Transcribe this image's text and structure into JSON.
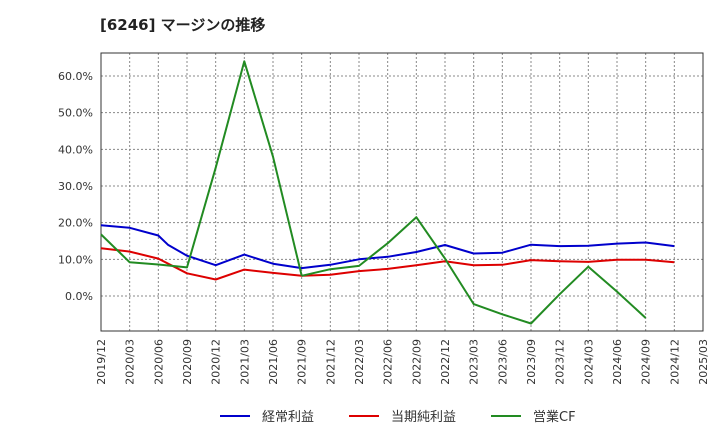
{
  "title": "[6246]  マージンの推移",
  "chart_data": {
    "type": "line",
    "title": "[6246]  マージンの推移",
    "xlabel": "",
    "ylabel": "",
    "ylim": [
      -10,
      67
    ],
    "x_ticks": [
      "2019/12",
      "2020/03",
      "2020/06",
      "2020/09",
      "2020/12",
      "2021/03",
      "2021/06",
      "2021/09",
      "2021/12",
      "2022/03",
      "2022/06",
      "2022/09",
      "2022/12",
      "2023/03",
      "2023/06",
      "2023/09",
      "2023/12",
      "2024/03",
      "2024/06",
      "2024/09",
      "2024/12",
      "2025/03"
    ],
    "y_ticks": [
      0,
      10,
      20,
      30,
      40,
      50,
      60
    ],
    "y_tick_labels": [
      "0.0%",
      "10.0%",
      "20.0%",
      "30.0%",
      "40.0%",
      "50.0%",
      "60.0%"
    ],
    "grid": true,
    "legend_position": "bottom",
    "series": [
      {
        "name": "経常利益",
        "color": "#0000cc",
        "points": [
          [
            "2019/12",
            19.3
          ],
          [
            "2020/03",
            18.6
          ],
          [
            "2020/06",
            16.5
          ],
          [
            "2020/07",
            14.0
          ],
          [
            "2020/09",
            11.0
          ],
          [
            "2020/12",
            8.4
          ],
          [
            "2021/03",
            11.3
          ],
          [
            "2021/06",
            8.8
          ],
          [
            "2021/09",
            7.6
          ],
          [
            "2021/12",
            8.5
          ],
          [
            "2022/03",
            10.0
          ],
          [
            "2022/06",
            10.7
          ],
          [
            "2022/09",
            12.0
          ],
          [
            "2022/12",
            13.9
          ],
          [
            "2023/03",
            11.6
          ],
          [
            "2023/06",
            11.8
          ],
          [
            "2023/09",
            14.0
          ],
          [
            "2023/12",
            13.6
          ],
          [
            "2024/03",
            13.7
          ],
          [
            "2024/06",
            14.3
          ],
          [
            "2024/09",
            14.6
          ],
          [
            "2024/12",
            13.6
          ]
        ]
      },
      {
        "name": "当期純利益",
        "color": "#dd0000",
        "points": [
          [
            "2019/12",
            13.0
          ],
          [
            "2020/03",
            12.1
          ],
          [
            "2020/06",
            10.2
          ],
          [
            "2020/09",
            6.2
          ],
          [
            "2020/12",
            4.5
          ],
          [
            "2021/03",
            7.2
          ],
          [
            "2021/06",
            6.3
          ],
          [
            "2021/09",
            5.5
          ],
          [
            "2021/12",
            5.8
          ],
          [
            "2022/03",
            6.8
          ],
          [
            "2022/06",
            7.4
          ],
          [
            "2022/09",
            8.4
          ],
          [
            "2022/12",
            9.5
          ],
          [
            "2023/03",
            8.4
          ],
          [
            "2023/06",
            8.5
          ],
          [
            "2023/09",
            9.8
          ],
          [
            "2023/12",
            9.5
          ],
          [
            "2024/03",
            9.3
          ],
          [
            "2024/06",
            9.9
          ],
          [
            "2024/09",
            9.9
          ],
          [
            "2024/12",
            9.2
          ]
        ]
      },
      {
        "name": "営業CF",
        "color": "#228b22",
        "segments": [
          [
            [
              "2019/12",
              16.8
            ],
            [
              "2020/03",
              9.2
            ],
            [
              "2020/06",
              8.6
            ],
            [
              "2020/09",
              7.8
            ],
            [
              "2020/12",
              35.0
            ],
            [
              "2021/03",
              64.0
            ],
            [
              "2021/06",
              38.0
            ],
            [
              "2021/09",
              5.5
            ]
          ],
          [
            [
              "2021/09",
              5.5
            ],
            [
              "2021/12",
              7.3
            ],
            [
              "2022/03",
              8.2
            ],
            [
              "2022/06",
              14.4
            ],
            [
              "2022/09",
              21.5
            ],
            [
              "2022/12",
              10.2
            ],
            [
              "2023/03",
              -2.2
            ],
            [
              "2023/06",
              -5.0
            ],
            [
              "2023/09",
              -7.5
            ],
            [
              "2023/12",
              0.5
            ],
            [
              "2024/03",
              8.0
            ],
            [
              "2024/06",
              1.2
            ],
            [
              "2024/09",
              -6.0
            ]
          ]
        ]
      }
    ]
  }
}
